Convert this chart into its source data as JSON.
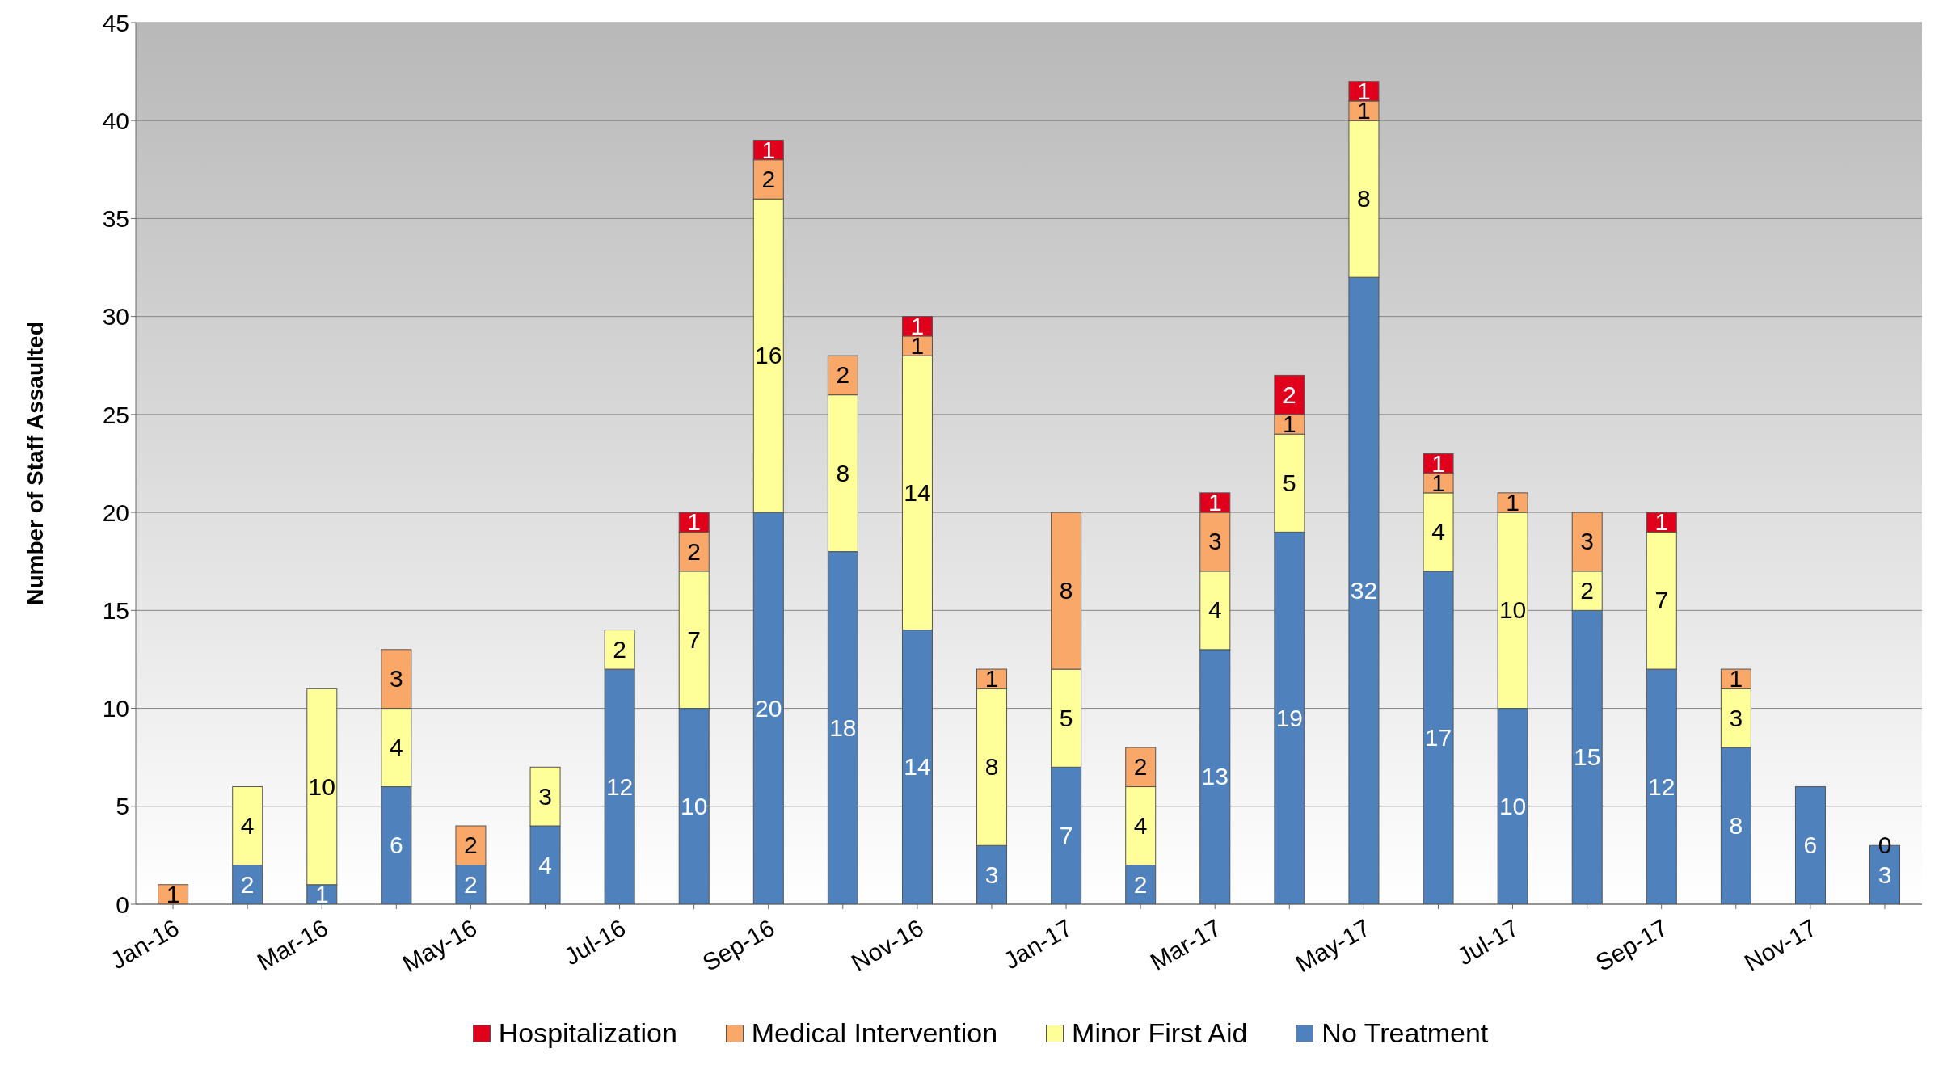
{
  "chart_data": {
    "type": "bar",
    "stacked": true,
    "ylabel": "Number of Staff  Assaulted",
    "categories": [
      "Jan-16",
      null,
      "Mar-16",
      null,
      "May-16",
      null,
      "Jul-16",
      null,
      "Sep-16",
      null,
      "Nov-16",
      null,
      "Jan-17",
      null,
      "Mar-17",
      null,
      "May-17",
      null,
      "Jul-17",
      null,
      "Sep-17",
      null,
      "Nov-17",
      null
    ],
    "series": [
      {
        "name": "No Treatment",
        "color": "#4f81bd",
        "values": [
          0,
          2,
          1,
          6,
          2,
          4,
          12,
          10,
          20,
          18,
          14,
          3,
          7,
          2,
          13,
          19,
          32,
          17,
          10,
          15,
          12,
          8,
          6,
          3
        ],
        "value_labels": [
          null,
          "2",
          "1",
          "6",
          "2",
          "4",
          "12",
          "10",
          "20",
          "18",
          "14",
          "3",
          "7",
          "2",
          "13",
          "19",
          "32",
          "17",
          "10",
          "15",
          "12",
          "8",
          "6",
          "3"
        ]
      },
      {
        "name": "Minor First Aid",
        "color": "#ffff99",
        "values": [
          0,
          4,
          10,
          4,
          0,
          3,
          2,
          7,
          16,
          8,
          14,
          8,
          5,
          4,
          4,
          5,
          8,
          4,
          10,
          2,
          7,
          3,
          0,
          0
        ],
        "value_labels": [
          null,
          "4",
          "10",
          "4",
          null,
          "3",
          "2",
          "7",
          "16",
          "8",
          "14",
          "8",
          "5",
          "4",
          "4",
          "5",
          "8",
          "4",
          "10",
          "2",
          "7",
          "3",
          null,
          "0"
        ]
      },
      {
        "name": "Medical Intervention",
        "color": "#f9a86a",
        "values": [
          1,
          0,
          0,
          3,
          2,
          0,
          0,
          2,
          2,
          2,
          1,
          1,
          8,
          2,
          3,
          1,
          1,
          1,
          1,
          3,
          0,
          1,
          0,
          0
        ],
        "value_labels": [
          "1",
          null,
          null,
          "3",
          "2",
          null,
          null,
          "2",
          "2",
          "2",
          "1",
          "1",
          "8",
          "2",
          "3",
          "1",
          "1",
          "1",
          "1",
          "3",
          null,
          "1",
          null,
          null
        ]
      },
      {
        "name": "Hospitalization",
        "color": "#e0001b",
        "values": [
          0,
          0,
          0,
          0,
          0,
          0,
          0,
          1,
          1,
          0,
          1,
          0,
          0,
          0,
          1,
          2,
          1,
          1,
          0,
          0,
          1,
          0,
          0,
          0
        ],
        "value_labels": [
          null,
          null,
          null,
          null,
          null,
          null,
          null,
          "1",
          "1",
          null,
          "1",
          null,
          null,
          null,
          "1",
          "2",
          "1",
          "1",
          null,
          null,
          "1",
          null,
          null,
          null
        ]
      }
    ],
    "ylim": [
      0,
      45
    ],
    "yticks": [
      0,
      5,
      10,
      15,
      20,
      25,
      30,
      35,
      40,
      45
    ],
    "grid": "y",
    "legend": "bottom"
  }
}
